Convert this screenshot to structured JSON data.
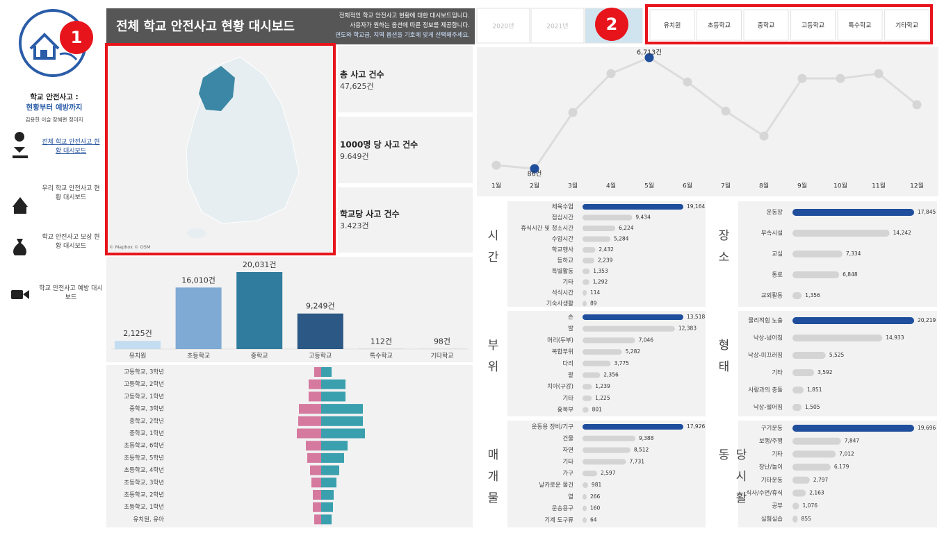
{
  "sidebar": {
    "title": "학교 안전사고 :",
    "subtitle": "현황부터 예방까지",
    "authors": "김용한 이슬 장혜편 정미지",
    "nav": [
      "전체 학교 안전사고 현황 대시보드",
      "우리 학교 안전사고 현황 대시보드",
      "학교 안전사고 보상 현황 대시보드",
      "학교 안전사고 예방 대시보드"
    ]
  },
  "header": {
    "title": "전체 학교 안전사고 현황 대시보드",
    "description": [
      "전체적인 학교 안전사고 현황에 대한 대시보드입니다.",
      "사용자가 원하는 옵션에 따른 정보를 제공합니다.",
      "연도와 학교급, 지역 옵션을 기호에 맞게 선택해주세요."
    ]
  },
  "year_tabs": [
    "2020년",
    "2021년"
  ],
  "level_tabs": [
    "유치원",
    "초등학교",
    "중학교",
    "고등학교",
    "특수학교",
    "기타학교"
  ],
  "annotations": [
    "1",
    "2"
  ],
  "map": {
    "credit": "© Mapbox © OSM"
  },
  "kpis": [
    {
      "label": "총 사고 건수",
      "value": "47,625건"
    },
    {
      "label": "1000명 당 사고 건수",
      "value": "9.649건"
    },
    {
      "label": "학교당 사고 건수",
      "value": "3.423건"
    }
  ],
  "chart_data": [
    {
      "type": "bar",
      "categories": [
        "유치원",
        "초등학교",
        "중학교",
        "고등학교",
        "특수학교",
        "기타학교"
      ],
      "values": [
        2125,
        16010,
        20031,
        9249,
        112,
        98
      ],
      "value_labels": [
        "2,125건",
        "16,010건",
        "20,031건",
        "9,249건",
        "112건",
        "98건"
      ],
      "colors": [
        "#c4dcef",
        "#7eaad3",
        "#2f7c9e",
        "#2b5884",
        "#d0d0d0",
        "#d0d0d0"
      ]
    },
    {
      "type": "butterfly",
      "categories": [
        "고등학교, 3학년",
        "고등학교, 2학년",
        "고등학교, 1학년",
        "중학교, 3학년",
        "중학교, 2학년",
        "중학교, 1학년",
        "초등학교, 6학년",
        "초등학교, 5학년",
        "초등학교, 4학년",
        "초등학교, 3학년",
        "초등학교, 2학년",
        "초등학교, 1학년",
        "유치원, 유아"
      ],
      "series": [
        {
          "color": "#d5799f",
          "values": [
            10,
            18,
            18,
            32,
            33,
            35,
            22,
            20,
            16,
            14,
            12,
            12,
            10
          ]
        },
        {
          "color": "#3aa0ae",
          "values": [
            15,
            35,
            35,
            60,
            60,
            63,
            38,
            33,
            26,
            22,
            18,
            17,
            15
          ]
        }
      ]
    },
    {
      "type": "line",
      "categories": [
        "1월",
        "2월",
        "3월",
        "4월",
        "5월",
        "6월",
        "7월",
        "8월",
        "9월",
        "10월",
        "11월",
        "12월"
      ],
      "values": [
        290,
        86,
        3440,
        5760,
        6713,
        5260,
        3520,
        2030,
        5470,
        5470,
        5760,
        3900
      ],
      "value_labels": [
        null,
        "86건",
        null,
        null,
        "6,713건",
        null,
        null,
        null,
        null,
        null,
        null,
        null
      ],
      "color": "#dcdcdc",
      "point_colors": [
        "#d6d6d6",
        "#1f4e9c",
        "#d6d6d6",
        "#d6d6d6",
        "#1f4e9c",
        "#d6d6d6",
        "#d6d6d6",
        "#d6d6d6",
        "#d6d6d6",
        "#d6d6d6",
        "#d6d6d6",
        "#d6d6d6"
      ]
    },
    {
      "type": "hbar",
      "title": "시간",
      "categories": [
        "체육수업",
        "점심시간",
        "휴식시간 및 청소시간",
        "수업시간",
        "학교행사",
        "등하교",
        "특별활동",
        "기타",
        "석식시간",
        "기숙사생활"
      ],
      "values": [
        19164,
        9434,
        6224,
        5284,
        2432,
        2239,
        1353,
        1292,
        114,
        89
      ],
      "value_labels": [
        "19,164",
        "9,434",
        "6,224",
        "5,284",
        "2,432",
        "2,239",
        "1,353",
        "1,292",
        "114",
        "89"
      ],
      "colors": [
        "#1f4e9c",
        "#d4d4d4",
        "#d4d4d4",
        "#d4d4d4",
        "#d4d4d4",
        "#d4d4d4",
        "#d4d4d4",
        "#d4d4d4",
        "#d4d4d4",
        "#d4d4d4"
      ]
    },
    {
      "type": "hbar",
      "title": "부위",
      "categories": [
        "손",
        "발",
        "머리(두부)",
        "복합부위",
        "다리",
        "팔",
        "치아(구강)",
        "기타",
        "흉복부"
      ],
      "values": [
        13518,
        12383,
        7046,
        5282,
        3775,
        2356,
        1239,
        1225,
        801
      ],
      "value_labels": [
        "13,518",
        "12,383",
        "7,046",
        "5,282",
        "3,775",
        "2,356",
        "1,239",
        "1,225",
        "801"
      ],
      "colors": [
        "#1f4e9c",
        "#d4d4d4",
        "#d4d4d4",
        "#d4d4d4",
        "#d4d4d4",
        "#d4d4d4",
        "#d4d4d4",
        "#d4d4d4",
        "#d4d4d4"
      ]
    },
    {
      "type": "hbar",
      "title": "매개물",
      "categories": [
        "운동용 장비/기구",
        "건물",
        "자연",
        "기타",
        "가구",
        "날카로운 물건",
        "열",
        "운송용구",
        "기계 도구류"
      ],
      "values": [
        17926,
        9388,
        8512,
        7731,
        2597,
        981,
        266,
        160,
        64
      ],
      "value_labels": [
        "17,926",
        "9,388",
        "8,512",
        "7,731",
        "2,597",
        "981",
        "266",
        "160",
        "64"
      ],
      "colors": [
        "#1f4e9c",
        "#d4d4d4",
        "#d4d4d4",
        "#d4d4d4",
        "#d4d4d4",
        "#d4d4d4",
        "#d4d4d4",
        "#d4d4d4",
        "#d4d4d4"
      ]
    },
    {
      "type": "hbar",
      "title": "장소",
      "categories": [
        "운동장",
        "부속시설",
        "교실",
        "통로",
        "교외활동"
      ],
      "values": [
        17845,
        14242,
        7334,
        6848,
        1356
      ],
      "value_labels": [
        "17,845",
        "14,242",
        "7,334",
        "6,848",
        "1,356"
      ],
      "colors": [
        "#1f4e9c",
        "#d4d4d4",
        "#d4d4d4",
        "#d4d4d4",
        "#d4d4d4"
      ]
    },
    {
      "type": "hbar",
      "title": "형태",
      "categories": [
        "물리적힘 노출",
        "낙상-넘어짐",
        "낙상-미끄러짐",
        "기타",
        "사람과의 충돌",
        "낙상-떨어짐"
      ],
      "values": [
        20219,
        14933,
        5525,
        3592,
        1851,
        1505
      ],
      "value_labels": [
        "20,219",
        "14,933",
        "5,525",
        "3,592",
        "1,851",
        "1,505"
      ],
      "colors": [
        "#1f4e9c",
        "#d4d4d4",
        "#d4d4d4",
        "#d4d4d4",
        "#d4d4d4",
        "#d4d4d4"
      ]
    },
    {
      "type": "hbar",
      "title": "당시활동",
      "categories": [
        "구기운동",
        "보행/주행",
        "기타",
        "장난/놀이",
        "기타운동",
        "식사/수면/휴식",
        "공부",
        "실험실습"
      ],
      "values": [
        19696,
        7847,
        7012,
        6179,
        2797,
        2163,
        1076,
        855
      ],
      "value_labels": [
        "19,696",
        "7,847",
        "7,012",
        "6,179",
        "2,797",
        "2,163",
        "1,076",
        "855"
      ],
      "colors": [
        "#1f4e9c",
        "#d4d4d4",
        "#d4d4d4",
        "#d4d4d4",
        "#d4d4d4",
        "#d4d4d4",
        "#d4d4d4",
        "#d4d4d4"
      ]
    }
  ]
}
